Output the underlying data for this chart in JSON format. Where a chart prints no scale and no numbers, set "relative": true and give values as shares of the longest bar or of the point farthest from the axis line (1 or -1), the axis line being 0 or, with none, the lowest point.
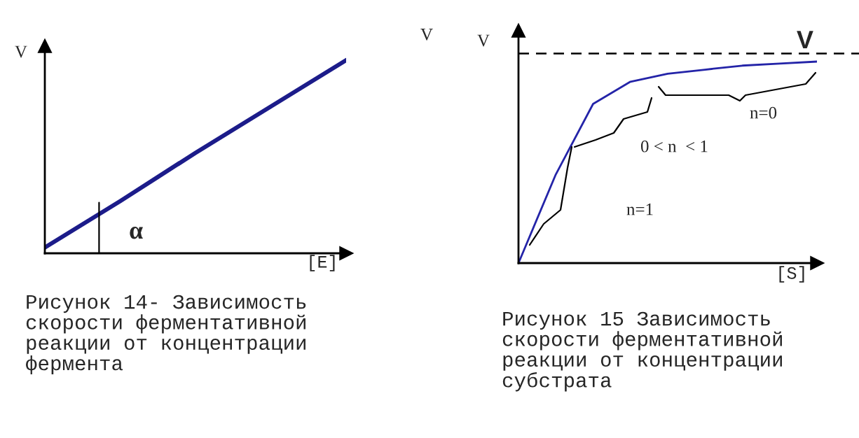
{
  "chart_data": [
    {
      "type": "line",
      "relative": true,
      "xlabel": "[E]",
      "ylabel": "V",
      "categories": [
        null,
        null,
        null,
        null,
        null
      ],
      "series": [
        {
          "color": "#1c1c8a",
          "values": [
            0.03,
            0.27,
            0.52,
            0.76,
            1.0
          ]
        }
      ],
      "annotations": [
        "α",
        "Рисунок 14- Зависимость\nскорости ферментативной\nреакции от концентрации\nфермента"
      ]
    },
    {
      "type": "line",
      "relative": true,
      "xlabel": "[S]",
      "ylabel": "V",
      "categories": [
        null,
        null,
        null,
        null,
        null,
        null,
        null,
        null,
        null
      ],
      "series": [
        {
          "color": "#2424a8",
          "values": [
            0,
            0.44,
            0.79,
            0.9,
            0.94,
            0.96,
            0.98,
            0.99,
            1.0
          ]
        }
      ],
      "ref_lines": [
        {
          "axis": "y",
          "value": 1.04,
          "label": "V",
          "color": "#000000",
          "line_style": "dashed"
        }
      ],
      "annotations": [
        "V",
        "n=1",
        "0 < n  < 1",
        "n=0",
        "Рисунок 15 Зависимость\nскорости ферментативной\nреакции от концентрации\nсубстрата"
      ]
    }
  ]
}
